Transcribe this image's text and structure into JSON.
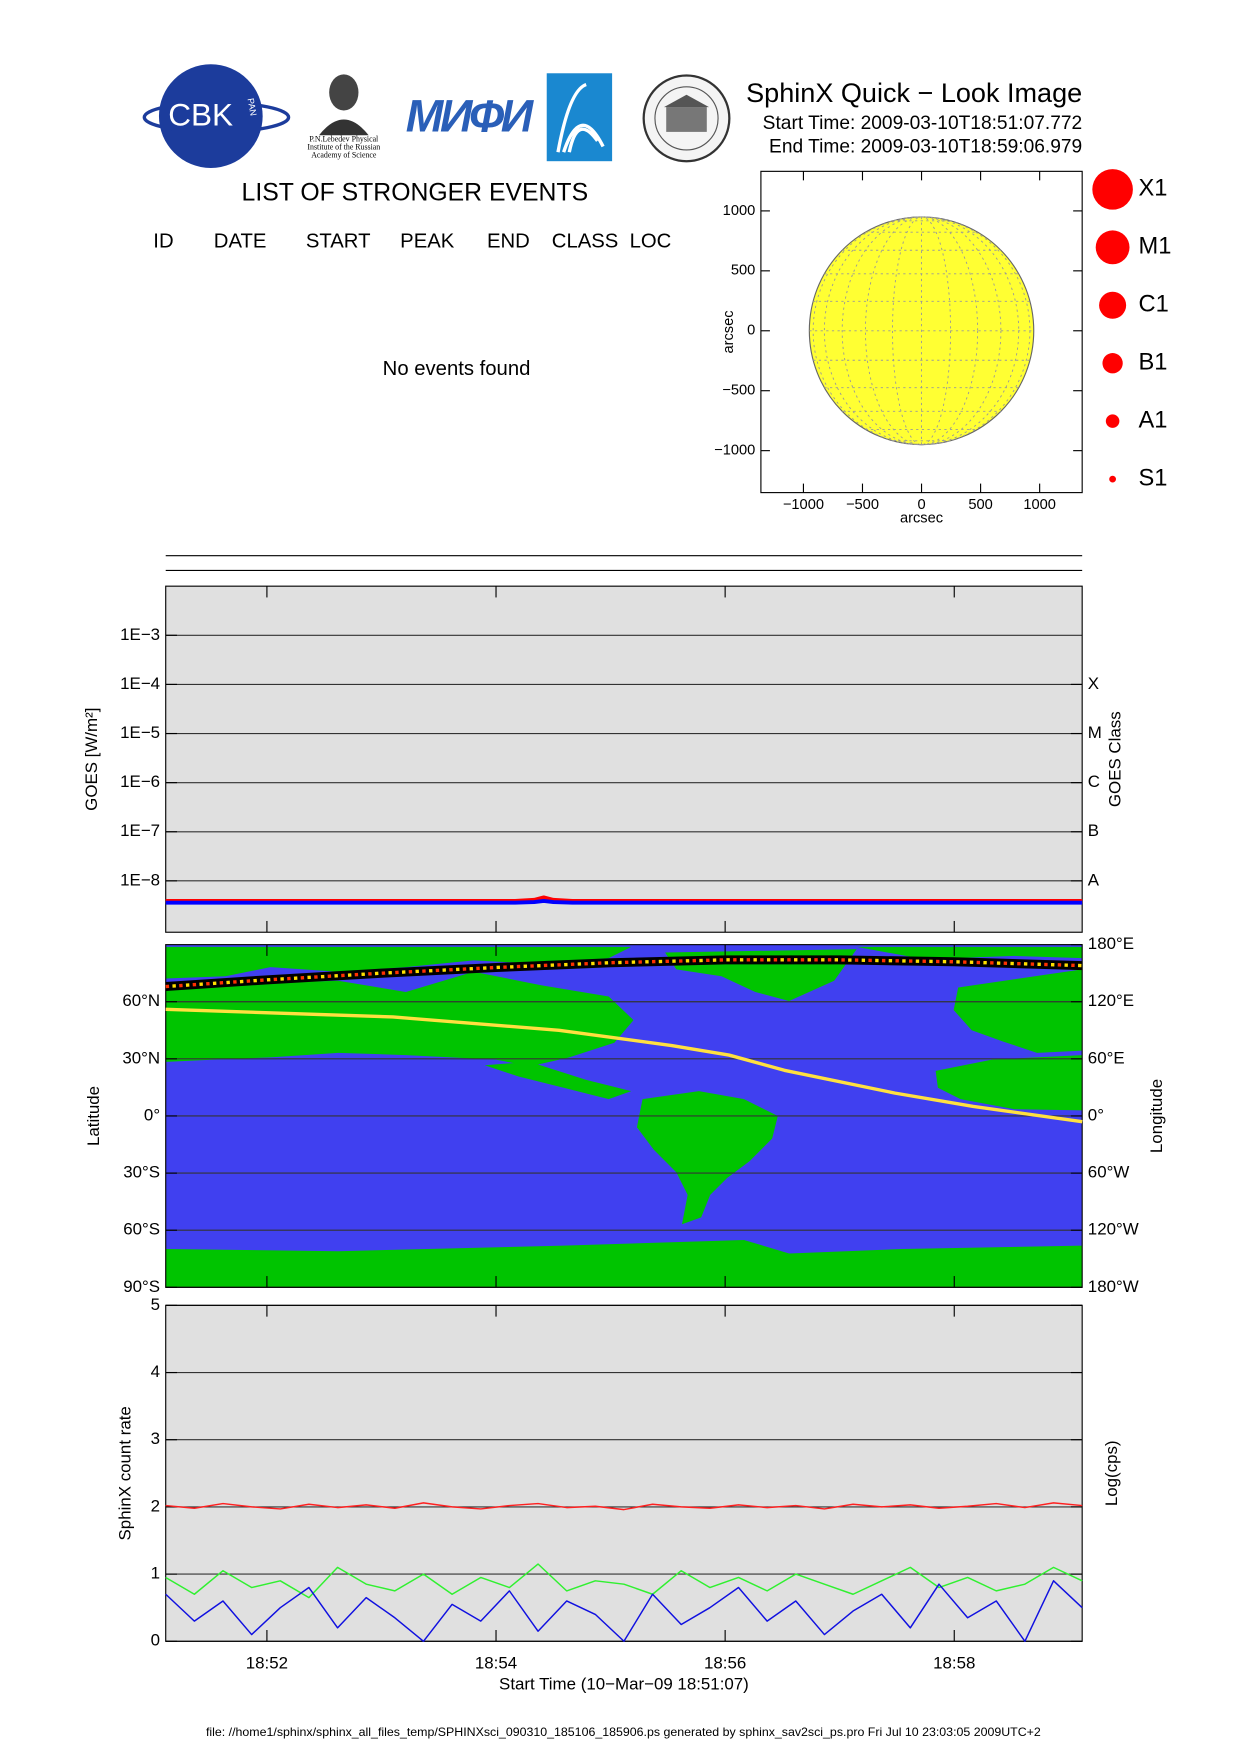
{
  "header": {
    "logos": {
      "cbk": "CBK",
      "pan": "PAN",
      "lebedev": [
        "P.N.Lebedev Physical",
        "Institute of the Russian",
        "Academy of Science"
      ],
      "mifi": "МИФИ"
    },
    "title": "SphinX Quick − Look Image",
    "start_time": "Start Time: 2009-03-10T18:51:07.772",
    "end_time": "End Time: 2009-03-10T18:59:06.979"
  },
  "events": {
    "title": "LIST OF STRONGER EVENTS",
    "columns": [
      "ID",
      "DATE",
      "START",
      "PEAK",
      "END",
      "CLASS",
      "LOC"
    ],
    "message": "No events found"
  },
  "class_legend": {
    "items": [
      "X1",
      "M1",
      "C1",
      "B1",
      "A1",
      "S1"
    ],
    "color": "#ff0000"
  },
  "chart_data": [
    {
      "type": "disk",
      "xlabel": "arcsec",
      "ylabel": "arcsec",
      "xlim": [
        -1360,
        1360
      ],
      "ylim": [
        -1350,
        1330
      ],
      "xticks": [
        {
          "value": -1000,
          "label": "−1000"
        },
        {
          "value": -500,
          "label": "−500"
        },
        0,
        500,
        1000
      ],
      "yticks": [
        {
          "value": -1000,
          "label": "−1000"
        },
        {
          "value": -500,
          "label": "−500"
        },
        0,
        500,
        1000
      ],
      "disk_radius": 950,
      "color": "#ffff33"
    },
    {
      "type": "line",
      "log_y": true,
      "ylabel": "GOES [W/m²]",
      "y2label": "GOES Class",
      "xlim": [
        "18:51:07",
        "18:59:07"
      ],
      "xticks": [
        "18:52",
        "18:54",
        "18:56",
        "18:58"
      ],
      "xtick_labels": false,
      "ylim": [
        9e-10,
        0.01
      ],
      "yticks": [
        {
          "value": 0.001,
          "label": "1E−3"
        },
        {
          "value": 0.0001,
          "label": "1E−4"
        },
        {
          "value": 1e-05,
          "label": "1E−5"
        },
        {
          "value": 1e-06,
          "label": "1E−6"
        },
        {
          "value": 1e-07,
          "label": "1E−7"
        },
        {
          "value": 1e-08,
          "label": "1E−8"
        }
      ],
      "y2lim": [
        9e-10,
        0.01
      ],
      "y2ticks": [
        {
          "value": 1e-08,
          "label": "A"
        },
        {
          "value": 1e-07,
          "label": "B"
        },
        {
          "value": 1e-06,
          "label": "C"
        },
        {
          "value": 1e-05,
          "label": "M"
        },
        {
          "value": 0.0001,
          "label": "X"
        }
      ],
      "grid": true,
      "background": "#e0e0e0",
      "series": [
        {
          "color": "#ff0000",
          "x": [
            "18:51:07",
            "18:54:10",
            "18:54:20",
            "18:54:25",
            "18:54:30",
            "18:54:40",
            "18:59:07"
          ],
          "values": [
            3.9e-09,
            3.9e-09,
            4.1e-09,
            4.6e-09,
            4.1e-09,
            3.9e-09,
            3.9e-09
          ]
        },
        {
          "color": "#0000ff",
          "x": [
            "18:51:07",
            "18:54:10",
            "18:54:20",
            "18:54:25",
            "18:54:30",
            "18:54:40",
            "18:59:07"
          ],
          "values": [
            3.6e-09,
            3.6e-09,
            3.7e-09,
            3.9e-09,
            3.7e-09,
            3.6e-09,
            3.6e-09
          ]
        }
      ]
    },
    {
      "type": "map",
      "ylabel": "Latitude",
      "y2label": "Longitude",
      "xlim": [
        "18:51:07",
        "18:59:07"
      ],
      "xticks": [
        "18:52",
        "18:54",
        "18:56",
        "18:58"
      ],
      "xtick_labels": false,
      "ylim": [
        -90,
        90
      ],
      "yticks": [
        {
          "value": -90,
          "label": "90°S"
        },
        {
          "value": -60,
          "label": "60°S"
        },
        {
          "value": -30,
          "label": "30°S"
        },
        {
          "value": 0,
          "label": "0°"
        },
        {
          "value": 30,
          "label": "30°N"
        },
        {
          "value": 60,
          "label": "60°N"
        }
      ],
      "y2lim": [
        -180,
        180
      ],
      "y2ticks": [
        {
          "value": -180,
          "label": "180°W"
        },
        {
          "value": -120,
          "label": "120°W"
        },
        {
          "value": -60,
          "label": "60°W"
        },
        {
          "value": 0,
          "label": "0°"
        },
        {
          "value": 60,
          "label": "60°E"
        },
        {
          "value": 120,
          "label": "120°E"
        },
        {
          "value": 180,
          "label": "180°E"
        }
      ],
      "grid": true,
      "ocean_color": "#4040f0",
      "land_color": "#00c400",
      "series": [
        {
          "color": "#ffe040",
          "x": [
            "18:51:07",
            "18:53:06",
            "18:54:33",
            "18:55:32",
            "18:56:02",
            "18:56:31",
            "18:57:29",
            "18:58:10",
            "18:59:07"
          ],
          "values": [
            56,
            52,
            45,
            37,
            32,
            24,
            12,
            5,
            -3
          ]
        },
        {
          "color": "#000000",
          "axis": "y2",
          "dot_colors": [
            "#ff3000",
            "#ffe000"
          ],
          "x": [
            "18:51:07",
            "18:52:00",
            "18:53:00",
            "18:54:00",
            "18:55:00",
            "18:56:00",
            "18:57:00",
            "18:58:00",
            "18:59:07"
          ],
          "values": [
            136,
            143,
            150,
            156,
            161,
            164,
            164,
            162,
            158
          ]
        }
      ]
    },
    {
      "type": "line",
      "ylabel": "SphinX count rate",
      "y2label": "Log(cps)",
      "xlabel": "Start Time (10−Mar−09 18:51:07)",
      "xlim": [
        "18:51:07",
        "18:59:07"
      ],
      "xticks": [
        "18:52",
        "18:54",
        "18:56",
        "18:58"
      ],
      "ylim": [
        0,
        5
      ],
      "yticks": [
        0,
        1,
        2,
        3,
        4,
        5
      ],
      "grid": true,
      "background": "#e0e0e0",
      "x": [
        "18:51:07",
        "18:51:22",
        "18:51:37",
        "18:51:52",
        "18:52:07",
        "18:52:22",
        "18:52:37",
        "18:52:52",
        "18:53:07",
        "18:53:22",
        "18:53:37",
        "18:53:52",
        "18:54:07",
        "18:54:22",
        "18:54:37",
        "18:54:52",
        "18:55:07",
        "18:55:22",
        "18:55:37",
        "18:55:52",
        "18:56:07",
        "18:56:22",
        "18:56:37",
        "18:56:52",
        "18:57:07",
        "18:57:22",
        "18:57:37",
        "18:57:52",
        "18:58:07",
        "18:58:22",
        "18:58:37",
        "18:58:52",
        "18:59:07"
      ],
      "series": [
        {
          "color": "#ff2020",
          "values": [
            2.02,
            1.98,
            2.05,
            2.0,
            1.97,
            2.04,
            1.99,
            2.03,
            1.98,
            2.06,
            2.0,
            1.97,
            2.02,
            2.05,
            1.99,
            2.01,
            1.96,
            2.04,
            2.0,
            1.98,
            2.03,
            1.99,
            2.02,
            1.97,
            2.04,
            2.0,
            2.03,
            1.98,
            2.01,
            2.05,
            1.99,
            2.06,
            2.02
          ]
        },
        {
          "color": "#30f030",
          "values": [
            0.95,
            0.7,
            1.05,
            0.8,
            0.9,
            0.65,
            1.1,
            0.85,
            0.75,
            1.0,
            0.7,
            0.95,
            0.8,
            1.15,
            0.75,
            0.9,
            0.85,
            0.7,
            1.05,
            0.8,
            0.95,
            0.75,
            1.0,
            0.85,
            0.7,
            0.9,
            1.1,
            0.8,
            0.95,
            0.75,
            0.85,
            1.1,
            0.9
          ]
        },
        {
          "color": "#1010e0",
          "values": [
            0.7,
            0.3,
            0.6,
            0.1,
            0.5,
            0.8,
            0.2,
            0.65,
            0.35,
            0.0,
            0.55,
            0.3,
            0.75,
            0.15,
            0.6,
            0.4,
            0.0,
            0.7,
            0.25,
            0.5,
            0.8,
            0.3,
            0.6,
            0.1,
            0.45,
            0.7,
            0.2,
            0.85,
            0.35,
            0.6,
            0.0,
            0.9,
            0.5
          ]
        }
      ]
    }
  ],
  "footer": "file: //home1/sphinx/sphinx_all_files_temp/SPHINXsci_090310_185106_185906.ps generated by sphinx_sav2sci_ps.pro Fri Jul 10 23:03:05 2009UTC+2"
}
